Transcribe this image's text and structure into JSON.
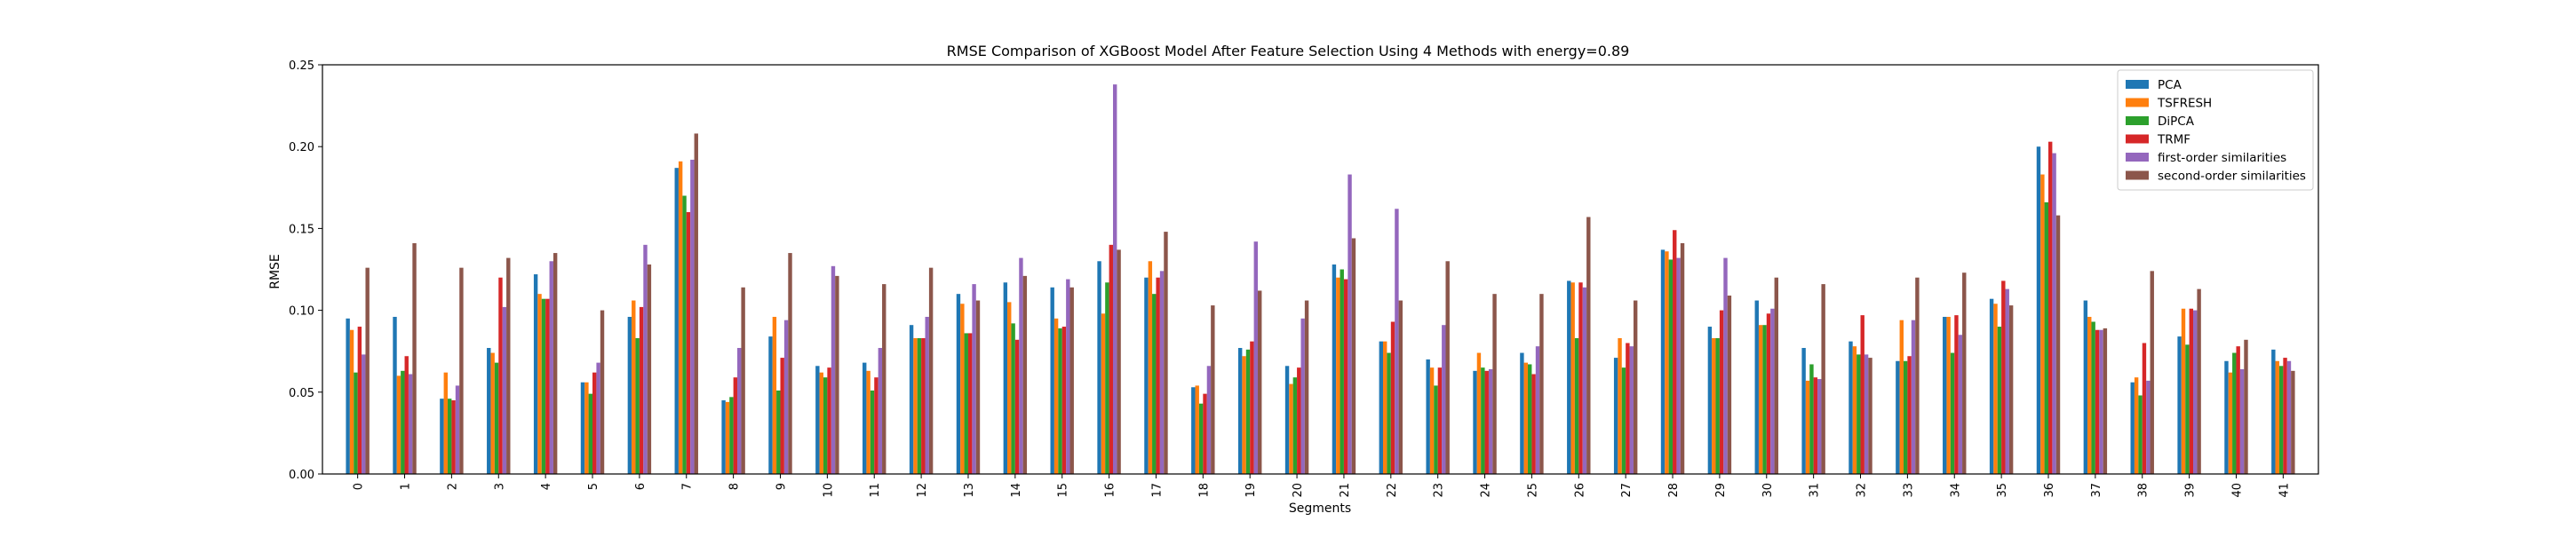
{
  "chart_data": {
    "type": "bar",
    "title": "RMSE Comparison of XGBoost Model After Feature Selection Using 4 Methods with energy=0.89",
    "xlabel": "Segments",
    "ylabel": "RMSE",
    "ylim": [
      0,
      0.25
    ],
    "yticks": [
      "0.00",
      "0.05",
      "0.10",
      "0.15",
      "0.20",
      "0.25"
    ],
    "grid": false,
    "legend_position": "top-right",
    "categories": [
      "0",
      "1",
      "2",
      "3",
      "4",
      "5",
      "6",
      "7",
      "8",
      "9",
      "10",
      "11",
      "12",
      "13",
      "14",
      "15",
      "16",
      "17",
      "18",
      "19",
      "20",
      "21",
      "22",
      "23",
      "24",
      "25",
      "26",
      "27",
      "28",
      "29",
      "30",
      "31",
      "32",
      "33",
      "34",
      "35",
      "36",
      "37",
      "38",
      "39",
      "40",
      "41"
    ],
    "series": [
      {
        "name": "PCA",
        "color": "#1f77b4",
        "values": [
          0.095,
          0.096,
          0.046,
          0.077,
          0.122,
          0.056,
          0.096,
          0.187,
          0.045,
          0.084,
          0.066,
          0.068,
          0.091,
          0.11,
          0.117,
          0.114,
          0.13,
          0.12,
          0.053,
          0.077,
          0.066,
          0.128,
          0.081,
          0.07,
          0.063,
          0.074,
          0.118,
          0.071,
          0.137,
          0.09,
          0.106,
          0.077,
          0.081,
          0.069,
          0.096,
          0.107,
          0.2,
          0.106,
          0.056,
          0.084,
          0.069,
          0.076
        ]
      },
      {
        "name": "TSFRESH",
        "color": "#ff7f0e",
        "values": [
          0.088,
          0.06,
          0.062,
          0.074,
          0.11,
          0.056,
          0.106,
          0.191,
          0.044,
          0.096,
          0.062,
          0.063,
          0.083,
          0.104,
          0.105,
          0.095,
          0.098,
          0.13,
          0.054,
          0.072,
          0.055,
          0.12,
          0.081,
          0.065,
          0.074,
          0.068,
          0.117,
          0.083,
          0.136,
          0.083,
          0.091,
          0.057,
          0.078,
          0.094,
          0.096,
          0.104,
          0.183,
          0.096,
          0.059,
          0.101,
          0.062,
          0.069
        ]
      },
      {
        "name": "DiPCA",
        "color": "#2ca02c",
        "values": [
          0.062,
          0.063,
          0.046,
          0.068,
          0.107,
          0.049,
          0.083,
          0.17,
          0.047,
          0.051,
          0.059,
          0.051,
          0.083,
          0.086,
          0.092,
          0.089,
          0.117,
          0.11,
          0.043,
          0.076,
          0.059,
          0.125,
          0.074,
          0.054,
          0.065,
          0.067,
          0.083,
          0.065,
          0.131,
          0.083,
          0.091,
          0.067,
          0.073,
          0.069,
          0.074,
          0.09,
          0.166,
          0.093,
          0.048,
          0.079,
          0.074,
          0.066
        ]
      },
      {
        "name": "TRMF",
        "color": "#d62728",
        "values": [
          0.09,
          0.072,
          0.045,
          0.12,
          0.107,
          0.062,
          0.102,
          0.16,
          0.059,
          0.071,
          0.065,
          0.059,
          0.083,
          0.086,
          0.082,
          0.09,
          0.14,
          0.12,
          0.049,
          0.081,
          0.065,
          0.119,
          0.093,
          0.065,
          0.063,
          0.061,
          0.117,
          0.08,
          0.149,
          0.1,
          0.098,
          0.059,
          0.097,
          0.072,
          0.097,
          0.118,
          0.203,
          0.088,
          0.08,
          0.101,
          0.078,
          0.071
        ]
      },
      {
        "name": "first-order similarities",
        "color": "#9467bd",
        "values": [
          0.073,
          0.061,
          0.054,
          0.102,
          0.13,
          0.068,
          0.14,
          0.192,
          0.077,
          0.094,
          0.127,
          0.077,
          0.096,
          0.116,
          0.132,
          0.119,
          0.238,
          0.124,
          0.066,
          0.142,
          0.095,
          0.183,
          0.162,
          0.091,
          0.064,
          0.078,
          0.114,
          0.078,
          0.132,
          0.132,
          0.101,
          0.058,
          0.073,
          0.094,
          0.085,
          0.113,
          0.196,
          0.088,
          0.057,
          0.1,
          0.064,
          0.069
        ]
      },
      {
        "name": "second-order similarities",
        "color": "#8c564b",
        "values": [
          0.126,
          0.141,
          0.126,
          0.132,
          0.135,
          0.1,
          0.128,
          0.208,
          0.114,
          0.135,
          0.121,
          0.116,
          0.126,
          0.106,
          0.121,
          0.114,
          0.137,
          0.148,
          0.103,
          0.112,
          0.106,
          0.144,
          0.106,
          0.13,
          0.11,
          0.11,
          0.157,
          0.106,
          0.141,
          0.109,
          0.12,
          0.116,
          0.071,
          0.12,
          0.123,
          0.103,
          0.158,
          0.089,
          0.124,
          0.113,
          0.082,
          0.063
        ]
      }
    ]
  }
}
